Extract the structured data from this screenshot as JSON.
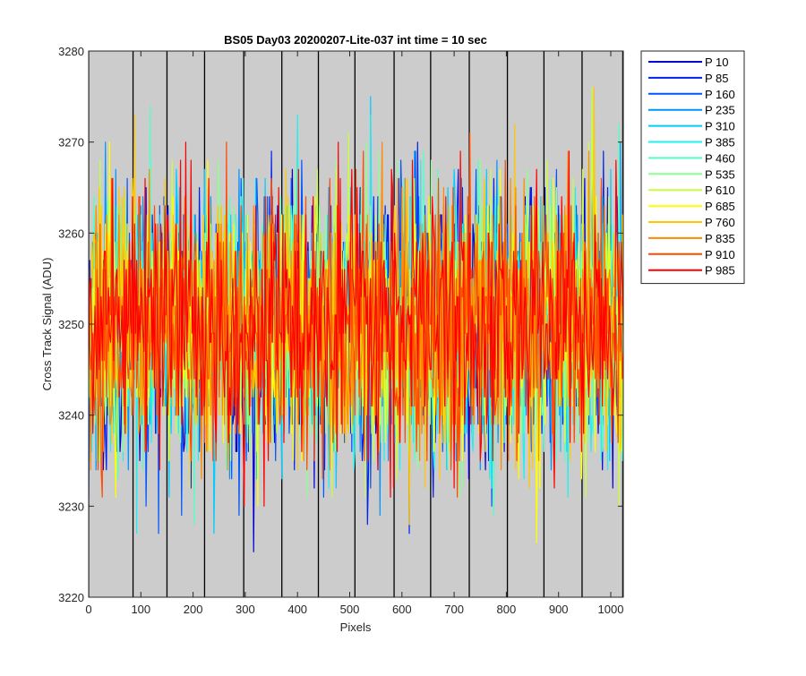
{
  "chart_data": {
    "type": "line",
    "title": "BS05 Day03 20200207-Lite-037 int time = 10 sec",
    "xlabel": "Pixels",
    "ylabel": "Cross Track Signal (ADU)",
    "xlim": [
      0,
      1024
    ],
    "ylim": [
      3220,
      3280
    ],
    "xticks": [
      0,
      100,
      200,
      300,
      400,
      500,
      600,
      700,
      800,
      900,
      1000
    ],
    "yticks": [
      3220,
      3230,
      3240,
      3250,
      3260,
      3270,
      3280
    ],
    "grid": false,
    "background": "#cccccc",
    "vertical_lines_x": [
      0,
      85,
      150,
      222,
      297,
      370,
      440,
      510,
      585,
      655,
      729,
      802,
      872,
      945,
      1023
    ],
    "legend_position": "outside-right",
    "noise": {
      "mean": 3250,
      "std": 7,
      "min": 3220,
      "max": 3276
    },
    "series": [
      {
        "name": "P 10",
        "color": "#0000d0"
      },
      {
        "name": "P 85",
        "color": "#0020ef"
      },
      {
        "name": "P 160",
        "color": "#0055ff"
      },
      {
        "name": "P 235",
        "color": "#0094ff"
      },
      {
        "name": "P 310",
        "color": "#00ccff"
      },
      {
        "name": "P 385",
        "color": "#20f0f0"
      },
      {
        "name": "P 460",
        "color": "#55ffc8"
      },
      {
        "name": "P 535",
        "color": "#8cff90"
      },
      {
        "name": "P 610",
        "color": "#c8ff40"
      },
      {
        "name": "P 685",
        "color": "#ffff00"
      },
      {
        "name": "P 760",
        "color": "#ffc800"
      },
      {
        "name": "P 835",
        "color": "#ff8a00"
      },
      {
        "name": "P 910",
        "color": "#ff4a00"
      },
      {
        "name": "P 985",
        "color": "#ff0000"
      }
    ]
  }
}
